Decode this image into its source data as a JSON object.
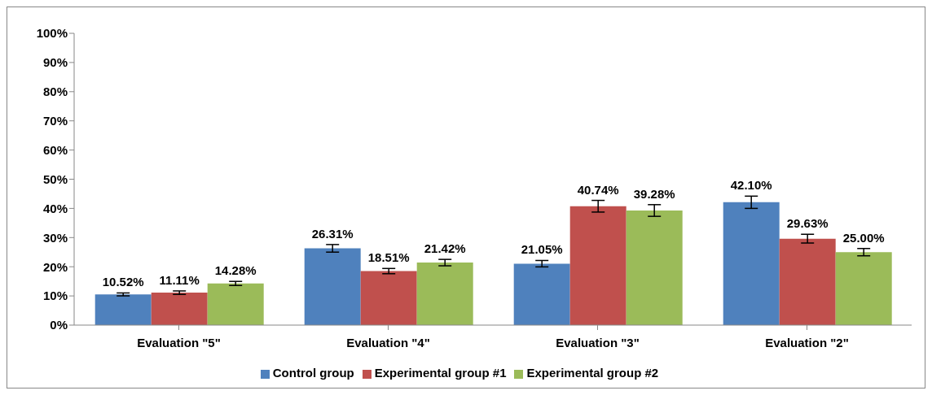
{
  "chart_data": {
    "type": "bar",
    "categories": [
      "Evaluation \"5\"",
      "Evaluation \"4\"",
      "Evaluation \"3\"",
      "Evaluation \"2\""
    ],
    "series": [
      {
        "name": "Control group",
        "color": "#4f81bd",
        "values": [
          10.52,
          26.31,
          21.05,
          42.1
        ],
        "errors": [
          0.5,
          1.3,
          1.1,
          2.1
        ],
        "value_labels": [
          "10.52%",
          "26.31%",
          "21.05%",
          "42.10%"
        ]
      },
      {
        "name": "Experimental group #1",
        "color": "#c0504d",
        "values": [
          11.11,
          18.51,
          40.74,
          29.63
        ],
        "errors": [
          0.6,
          0.9,
          2.0,
          1.5
        ],
        "value_labels": [
          "11.11%",
          "18.51%",
          "40.74%",
          "29.63%"
        ]
      },
      {
        "name": "Experimental group #2",
        "color": "#9bbb59",
        "values": [
          14.28,
          21.42,
          39.28,
          25.0
        ],
        "errors": [
          0.7,
          1.1,
          2.0,
          1.25
        ],
        "value_labels": [
          "14.28%",
          "21.42%",
          "39.28%",
          "25.00%"
        ]
      }
    ],
    "ylim": [
      0,
      100
    ],
    "yticks": [
      {
        "value": 0,
        "label": "0%"
      },
      {
        "value": 10,
        "label": "10%"
      },
      {
        "value": 20,
        "label": "20%"
      },
      {
        "value": 30,
        "label": "30%"
      },
      {
        "value": 40,
        "label": "40%"
      },
      {
        "value": 50,
        "label": "50%"
      },
      {
        "value": 60,
        "label": "60%"
      },
      {
        "value": 70,
        "label": "70%"
      },
      {
        "value": 80,
        "label": "80%"
      },
      {
        "value": 90,
        "label": "90%"
      },
      {
        "value": 100,
        "label": "100%"
      }
    ],
    "grid": false,
    "legend": "bottom"
  }
}
